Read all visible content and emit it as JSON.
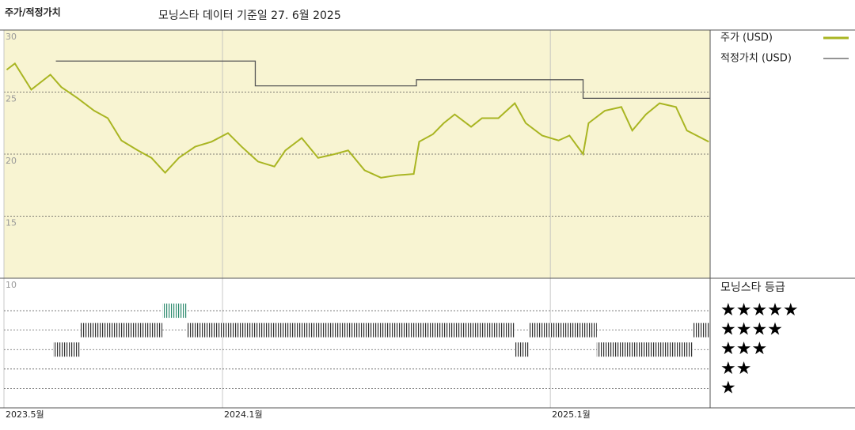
{
  "chart_data": [
    {
      "type": "line",
      "title": "주가/적정가치",
      "subtitle": "모닝스타 데이터 기준일 27. 6월 2025",
      "xlim": [
        0,
        25.85
      ],
      "xticks": [
        {
          "value": 0,
          "label": "2023.5월"
        },
        {
          "value": 8,
          "label": "2024.1월"
        },
        {
          "value": 20,
          "label": "2025.1월"
        }
      ],
      "ylim": [
        10,
        30
      ],
      "yticks": [
        10,
        15,
        20,
        25,
        30
      ],
      "grid": true,
      "background": "#f8f4d2",
      "series": [
        {
          "name": "주가 (USD)",
          "color": "#a9b522",
          "x": [
            0.1,
            0.4,
            1.0,
            1.7,
            2.1,
            2.7,
            3.3,
            3.8,
            4.3,
            4.9,
            5.4,
            5.9,
            6.4,
            7.0,
            7.6,
            8.2,
            8.7,
            9.3,
            9.9,
            10.3,
            10.9,
            11.5,
            12.1,
            12.6,
            13.2,
            13.8,
            14.4,
            15.0,
            15.2,
            15.7,
            16.1,
            16.5,
            17.1,
            17.5,
            18.1,
            18.7,
            19.1,
            19.7,
            20.3,
            20.7,
            21.2,
            21.4,
            22.0,
            22.6,
            23.0,
            23.5,
            24.0,
            24.6,
            25.0,
            25.8
          ],
          "values": [
            26.8,
            27.3,
            25.2,
            26.4,
            25.4,
            24.5,
            23.5,
            22.9,
            21.1,
            20.3,
            19.7,
            18.5,
            19.7,
            20.6,
            21.0,
            21.7,
            20.6,
            19.4,
            19.0,
            20.3,
            21.3,
            19.7,
            20.0,
            20.3,
            18.7,
            18.1,
            18.3,
            18.4,
            21.0,
            21.6,
            22.5,
            23.2,
            22.2,
            22.9,
            22.9,
            24.1,
            22.5,
            21.5,
            21.1,
            21.5,
            20.0,
            22.5,
            23.5,
            23.8,
            21.9,
            23.2,
            24.1,
            23.8,
            21.9,
            21.0
          ]
        },
        {
          "name": "적정가치 (USD)",
          "color": "#555555",
          "x": [
            1.9,
            9.2,
            9.2,
            15.1,
            15.1,
            21.2,
            21.2,
            25.85
          ],
          "values": [
            27.5,
            27.5,
            25.5,
            25.5,
            26.0,
            26.0,
            24.5,
            24.5
          ]
        }
      ]
    },
    {
      "type": "timeline",
      "title": "모닝스타 등급",
      "ylim": [
        0,
        6.67
      ],
      "yticks": [
        {
          "value": 5,
          "label": "★★★★★"
        },
        {
          "value": 4,
          "label": "★★★★"
        },
        {
          "value": 3,
          "label": "★★★"
        },
        {
          "value": 2,
          "label": "★★"
        },
        {
          "value": 1,
          "label": "★"
        }
      ],
      "colors": {
        "5": "#2e8b6e",
        "4": "#333333",
        "3": "#333333"
      },
      "periods": [
        {
          "start": 1.8,
          "end": 2.8,
          "rating": 3
        },
        {
          "start": 2.8,
          "end": 5.8,
          "rating": 4
        },
        {
          "start": 5.8,
          "end": 6.7,
          "rating": 5
        },
        {
          "start": 6.7,
          "end": 18.7,
          "rating": 4
        },
        {
          "start": 18.7,
          "end": 19.2,
          "rating": 3
        },
        {
          "start": 19.2,
          "end": 21.7,
          "rating": 4
        },
        {
          "start": 21.7,
          "end": 25.2,
          "rating": 3
        },
        {
          "start": 25.2,
          "end": 25.85,
          "rating": 4
        }
      ]
    }
  ]
}
